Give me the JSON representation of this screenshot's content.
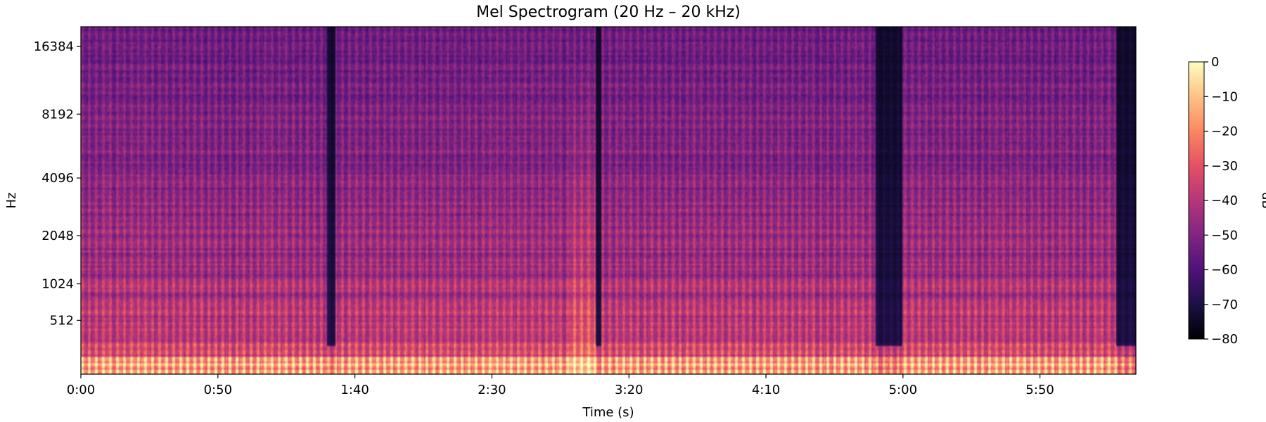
{
  "chart_data": {
    "type": "heatmap",
    "title": "Mel Spectrogram (20 Hz – 20 kHz)",
    "xlabel": "Time (s)",
    "ylabel": "Hz",
    "x_range_seconds": [
      0,
      385
    ],
    "x_ticks": [
      {
        "seconds": 0,
        "label": "0:00"
      },
      {
        "seconds": 50,
        "label": "0:50"
      },
      {
        "seconds": 100,
        "label": "1:40"
      },
      {
        "seconds": 150,
        "label": "2:30"
      },
      {
        "seconds": 200,
        "label": "3:20"
      },
      {
        "seconds": 250,
        "label": "4:10"
      },
      {
        "seconds": 300,
        "label": "5:00"
      },
      {
        "seconds": 350,
        "label": "5:50"
      }
    ],
    "y_scale": "mel",
    "y_range_hz": [
      20,
      20000
    ],
    "y_ticks": [
      {
        "hz": 512,
        "label": "512"
      },
      {
        "hz": 1024,
        "label": "1024"
      },
      {
        "hz": 2048,
        "label": "2048"
      },
      {
        "hz": 4096,
        "label": "4096"
      },
      {
        "hz": 8192,
        "label": "8192"
      },
      {
        "hz": 16384,
        "label": "16384"
      }
    ],
    "colormap": "magma",
    "colorbar": {
      "label": "dB",
      "range": [
        -80,
        0
      ],
      "ticks": [
        {
          "value": 0,
          "label": "0"
        },
        {
          "value": -10,
          "label": "−10"
        },
        {
          "value": -20,
          "label": "−20"
        },
        {
          "value": -30,
          "label": "−30"
        },
        {
          "value": -40,
          "label": "−40"
        },
        {
          "value": -50,
          "label": "−50"
        },
        {
          "value": -60,
          "label": "−60"
        },
        {
          "value": -70,
          "label": "−70"
        },
        {
          "value": -80,
          "label": "−80"
        }
      ]
    },
    "quiet_segments_seconds": [
      [
        90,
        93
      ],
      [
        188,
        190
      ],
      [
        290,
        300
      ],
      [
        378,
        385
      ]
    ],
    "loud_segments_seconds": [
      [
        178,
        188
      ]
    ]
  }
}
